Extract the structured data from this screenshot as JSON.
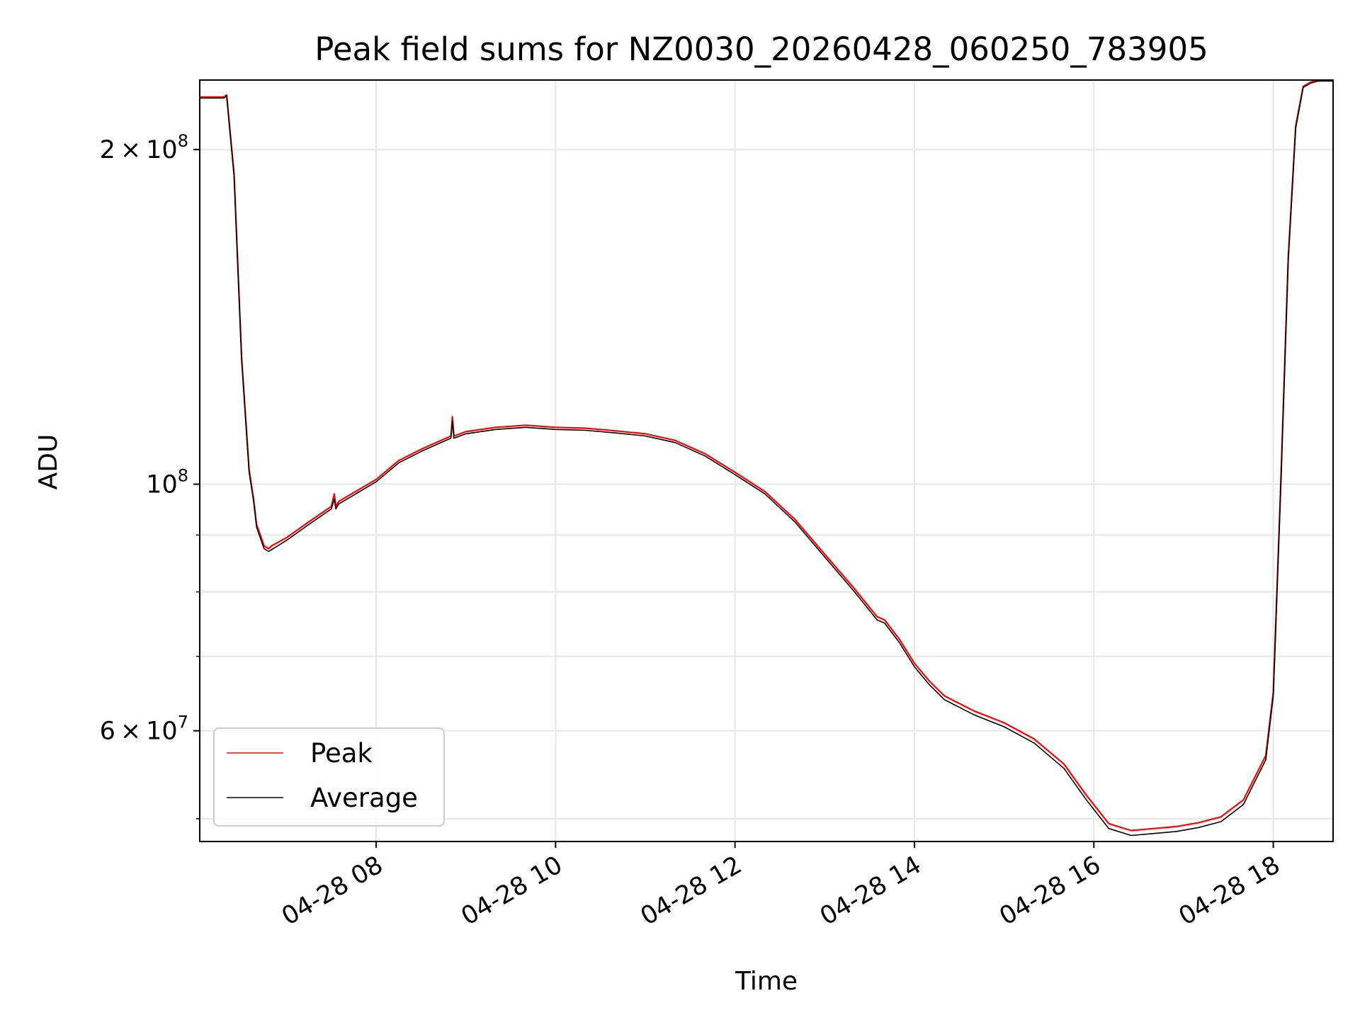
{
  "chart_data": {
    "type": "line",
    "title": "Peak field sums for NZ0030_20260428_060250_783905",
    "xlabel": "Time",
    "ylabel": "ADU",
    "yscale": "log",
    "grid": true,
    "legend_position": "lower-left",
    "xlim": [
      "2026-04-28 06:02",
      "2026-04-28 18:40"
    ],
    "ylim": [
      47700000,
      231000000
    ],
    "x_ticks": [
      {
        "value": "2026-04-28 08:00",
        "label": "04-28 08"
      },
      {
        "value": "2026-04-28 10:00",
        "label": "04-28 10"
      },
      {
        "value": "2026-04-28 12:00",
        "label": "04-28 12"
      },
      {
        "value": "2026-04-28 14:00",
        "label": "04-28 14"
      },
      {
        "value": "2026-04-28 16:00",
        "label": "04-28 16"
      },
      {
        "value": "2026-04-28 18:00",
        "label": "04-28 18"
      }
    ],
    "y_ticks": [
      {
        "value": 200000000,
        "base": "2",
        "exp": "8"
      },
      {
        "value": 100000000,
        "base": "",
        "exp": "8"
      },
      {
        "value": 60000000,
        "base": "6",
        "exp": "7"
      }
    ],
    "y_minor_ticks": [
      50000000,
      70000000,
      80000000,
      90000000
    ],
    "series": [
      {
        "name": "Peak",
        "color": "#ff0000",
        "x": [
          "2026-04-28 06:02",
          "2026-04-28 06:18",
          "2026-04-28 06:20",
          "2026-04-28 06:25",
          "2026-04-28 06:30",
          "2026-04-28 06:35",
          "2026-04-28 06:38",
          "2026-04-28 06:40",
          "2026-04-28 06:45",
          "2026-04-28 06:48",
          "2026-04-28 06:50",
          "2026-04-28 07:00",
          "2026-04-28 07:15",
          "2026-04-28 07:30",
          "2026-04-28 07:32",
          "2026-04-28 07:33",
          "2026-04-28 07:35",
          "2026-04-28 08:00",
          "2026-04-28 08:15",
          "2026-04-28 08:30",
          "2026-04-28 08:50",
          "2026-04-28 08:51",
          "2026-04-28 08:52",
          "2026-04-28 09:00",
          "2026-04-28 09:20",
          "2026-04-28 09:40",
          "2026-04-28 10:00",
          "2026-04-28 10:20",
          "2026-04-28 10:40",
          "2026-04-28 11:00",
          "2026-04-28 11:20",
          "2026-04-28 11:40",
          "2026-04-28 12:00",
          "2026-04-28 12:20",
          "2026-04-28 12:40",
          "2026-04-28 13:00",
          "2026-04-28 13:20",
          "2026-04-28 13:35",
          "2026-04-28 13:40",
          "2026-04-28 13:50",
          "2026-04-28 14:00",
          "2026-04-28 14:10",
          "2026-04-28 14:20",
          "2026-04-28 14:40",
          "2026-04-28 15:00",
          "2026-04-28 15:20",
          "2026-04-28 15:40",
          "2026-04-28 15:55",
          "2026-04-28 16:10",
          "2026-04-28 16:25",
          "2026-04-28 16:40",
          "2026-04-28 16:55",
          "2026-04-28 17:10",
          "2026-04-28 17:25",
          "2026-04-28 17:40",
          "2026-04-28 17:55",
          "2026-04-28 18:00",
          "2026-04-28 18:05",
          "2026-04-28 18:10",
          "2026-04-28 18:15",
          "2026-04-28 18:20",
          "2026-04-28 18:25",
          "2026-04-28 18:30",
          "2026-04-28 18:40"
        ],
        "y": [
          223000000,
          223000000,
          224000000,
          190000000,
          130000000,
          103000000,
          97000000,
          92000000,
          88000000,
          87500000,
          88000000,
          89500000,
          92500000,
          95500000,
          98000000,
          95500000,
          96500000,
          101000000,
          105000000,
          107500000,
          110500000,
          115000000,
          110500000,
          111500000,
          112500000,
          113000000,
          112500000,
          112300000,
          111700000,
          111000000,
          109500000,
          106500000,
          102500000,
          98500000,
          93000000,
          86500000,
          80500000,
          76000000,
          75500000,
          72500000,
          69000000,
          66500000,
          64500000,
          62500000,
          61000000,
          59000000,
          56000000,
          52500000,
          49500000,
          48800000,
          49000000,
          49200000,
          49600000,
          50200000,
          52000000,
          57000000,
          65000000,
          100000000,
          160000000,
          210000000,
          228000000,
          230000000,
          231000000,
          231000000
        ]
      },
      {
        "name": "Average",
        "color": "#000000",
        "x": [
          "2026-04-28 06:02",
          "2026-04-28 06:18",
          "2026-04-28 06:20",
          "2026-04-28 06:25",
          "2026-04-28 06:30",
          "2026-04-28 06:35",
          "2026-04-28 06:38",
          "2026-04-28 06:40",
          "2026-04-28 06:45",
          "2026-04-28 06:48",
          "2026-04-28 06:50",
          "2026-04-28 07:00",
          "2026-04-28 07:15",
          "2026-04-28 07:30",
          "2026-04-28 07:32",
          "2026-04-28 07:33",
          "2026-04-28 07:35",
          "2026-04-28 08:00",
          "2026-04-28 08:15",
          "2026-04-28 08:30",
          "2026-04-28 08:50",
          "2026-04-28 08:51",
          "2026-04-28 08:52",
          "2026-04-28 09:00",
          "2026-04-28 09:20",
          "2026-04-28 09:40",
          "2026-04-28 10:00",
          "2026-04-28 10:20",
          "2026-04-28 10:40",
          "2026-04-28 11:00",
          "2026-04-28 11:20",
          "2026-04-28 11:40",
          "2026-04-28 12:00",
          "2026-04-28 12:20",
          "2026-04-28 12:40",
          "2026-04-28 13:00",
          "2026-04-28 13:20",
          "2026-04-28 13:35",
          "2026-04-28 13:40",
          "2026-04-28 13:50",
          "2026-04-28 14:00",
          "2026-04-28 14:10",
          "2026-04-28 14:20",
          "2026-04-28 14:40",
          "2026-04-28 15:00",
          "2026-04-28 15:20",
          "2026-04-28 15:40",
          "2026-04-28 15:55",
          "2026-04-28 16:10",
          "2026-04-28 16:25",
          "2026-04-28 16:40",
          "2026-04-28 16:55",
          "2026-04-28 17:10",
          "2026-04-28 17:25",
          "2026-04-28 17:40",
          "2026-04-28 17:55",
          "2026-04-28 18:00",
          "2026-04-28 18:05",
          "2026-04-28 18:10",
          "2026-04-28 18:15",
          "2026-04-28 18:20",
          "2026-04-28 18:25",
          "2026-04-28 18:30",
          "2026-04-28 18:40"
        ],
        "y": [
          222500000,
          222500000,
          223500000,
          189000000,
          129500000,
          102500000,
          96500000,
          91500000,
          87500000,
          87000000,
          87300000,
          89000000,
          92000000,
          95000000,
          97000000,
          95000000,
          96000000,
          100500000,
          104500000,
          107000000,
          110000000,
          114000000,
          110000000,
          111000000,
          112000000,
          112500000,
          112000000,
          111800000,
          111200000,
          110500000,
          109000000,
          106000000,
          102000000,
          98000000,
          92500000,
          86000000,
          80000000,
          75500000,
          75000000,
          72000000,
          68500000,
          66000000,
          64000000,
          62000000,
          60500000,
          58500000,
          55500000,
          52000000,
          49000000,
          48300000,
          48500000,
          48700000,
          49100000,
          49700000,
          51500000,
          56500000,
          64500000,
          99000000,
          159000000,
          209000000,
          227500000,
          229500000,
          230500000,
          230500000
        ]
      }
    ]
  }
}
